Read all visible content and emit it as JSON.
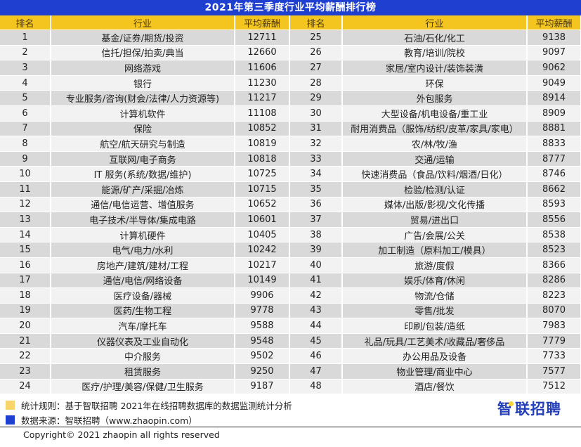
{
  "title": "2021年第三季度行业平均薪酬排行榜",
  "headers": {
    "rank": "排名",
    "industry": "行业",
    "salary": "平均薪酬"
  },
  "colors": {
    "title_bg": "#1f3fd1",
    "header_bg": "#f5c51f",
    "row_odd": "#d9d9d9",
    "row_even": "#f2f2f2",
    "legend_yellow": "#f9d46a",
    "legend_blue": "#1f3fd1"
  },
  "rows": [
    {
      "left": {
        "rank": "1",
        "industry": "基金/证券/期货/投资",
        "salary": "12711"
      },
      "right": {
        "rank": "25",
        "industry": "石油/石化/化工",
        "salary": "9138"
      }
    },
    {
      "left": {
        "rank": "2",
        "industry": "信托/担保/拍卖/典当",
        "salary": "12660"
      },
      "right": {
        "rank": "26",
        "industry": "教育/培训/院校",
        "salary": "9097"
      }
    },
    {
      "left": {
        "rank": "3",
        "industry": "网络游戏",
        "salary": "11606"
      },
      "right": {
        "rank": "27",
        "industry": "家居/室内设计/装饰装潢",
        "salary": "9062"
      }
    },
    {
      "left": {
        "rank": "4",
        "industry": "银行",
        "salary": "11230"
      },
      "right": {
        "rank": "28",
        "industry": "环保",
        "salary": "9049"
      }
    },
    {
      "left": {
        "rank": "5",
        "industry": "专业服务/咨询(财会/法律/人力资源等)",
        "salary": "11217"
      },
      "right": {
        "rank": "29",
        "industry": "外包服务",
        "salary": "8914"
      }
    },
    {
      "left": {
        "rank": "6",
        "industry": "计算机软件",
        "salary": "11108"
      },
      "right": {
        "rank": "30",
        "industry": "大型设备/机电设备/重工业",
        "salary": "8909"
      }
    },
    {
      "left": {
        "rank": "7",
        "industry": "保险",
        "salary": "10852"
      },
      "right": {
        "rank": "31",
        "industry": "耐用消费品（服饰/纺织/皮革/家具/家电）",
        "salary": "8881"
      }
    },
    {
      "left": {
        "rank": "8",
        "industry": "航空/航天研究与制造",
        "salary": "10819"
      },
      "right": {
        "rank": "32",
        "industry": "农/林/牧/渔",
        "salary": "8833"
      }
    },
    {
      "left": {
        "rank": "9",
        "industry": "互联网/电子商务",
        "salary": "10818"
      },
      "right": {
        "rank": "33",
        "industry": "交通/运输",
        "salary": "8777"
      }
    },
    {
      "left": {
        "rank": "10",
        "industry": "IT  服务(系统/数据/维护)",
        "salary": "10725"
      },
      "right": {
        "rank": "34",
        "industry": "快速消费品（食品/饮料/烟酒/日化）",
        "salary": "8746"
      }
    },
    {
      "left": {
        "rank": "11",
        "industry": "能源/矿产/采掘/冶炼",
        "salary": "10715"
      },
      "right": {
        "rank": "35",
        "industry": "检验/检测/认证",
        "salary": "8662"
      }
    },
    {
      "left": {
        "rank": "12",
        "industry": "通信/电信运营、增值服务",
        "salary": "10652"
      },
      "right": {
        "rank": "36",
        "industry": "媒体/出版/影视/文化传播",
        "salary": "8593"
      }
    },
    {
      "left": {
        "rank": "13",
        "industry": "电子技术/半导体/集成电路",
        "salary": "10601"
      },
      "right": {
        "rank": "37",
        "industry": "贸易/进出口",
        "salary": "8556"
      }
    },
    {
      "left": {
        "rank": "14",
        "industry": "计算机硬件",
        "salary": "10405"
      },
      "right": {
        "rank": "38",
        "industry": "广告/会展/公关",
        "salary": "8538"
      }
    },
    {
      "left": {
        "rank": "15",
        "industry": "电气/电力/水利",
        "salary": "10242"
      },
      "right": {
        "rank": "39",
        "industry": "加工制造（原料加工/模具）",
        "salary": "8523"
      }
    },
    {
      "left": {
        "rank": "16",
        "industry": "房地产/建筑/建材/工程",
        "salary": "10217"
      },
      "right": {
        "rank": "40",
        "industry": "旅游/度假",
        "salary": "8366"
      }
    },
    {
      "left": {
        "rank": "17",
        "industry": "通信/电信/网络设备",
        "salary": "10149"
      },
      "right": {
        "rank": "41",
        "industry": "娱乐/体育/休闲",
        "salary": "8286"
      }
    },
    {
      "left": {
        "rank": "18",
        "industry": "医疗设备/器械",
        "salary": "9906"
      },
      "right": {
        "rank": "42",
        "industry": "物流/仓储",
        "salary": "8223"
      }
    },
    {
      "left": {
        "rank": "19",
        "industry": "医药/生物工程",
        "salary": "9778"
      },
      "right": {
        "rank": "43",
        "industry": "零售/批发",
        "salary": "8070"
      }
    },
    {
      "left": {
        "rank": "20",
        "industry": "汽车/摩托车",
        "salary": "9588"
      },
      "right": {
        "rank": "44",
        "industry": "印刷/包装/造纸",
        "salary": "7983"
      }
    },
    {
      "left": {
        "rank": "21",
        "industry": "仪器仪表及工业自动化",
        "salary": "9548"
      },
      "right": {
        "rank": "45",
        "industry": "礼品/玩具/工艺美术/收藏品/奢侈品",
        "salary": "7779"
      }
    },
    {
      "left": {
        "rank": "22",
        "industry": "中介服务",
        "salary": "9502"
      },
      "right": {
        "rank": "46",
        "industry": "办公用品及设备",
        "salary": "7733"
      }
    },
    {
      "left": {
        "rank": "23",
        "industry": "租赁服务",
        "salary": "9250"
      },
      "right": {
        "rank": "47",
        "industry": "物业管理/商业中心",
        "salary": "7577"
      }
    },
    {
      "left": {
        "rank": "24",
        "industry": "医疗/护理/美容/保健/卫生服务",
        "salary": "9187"
      },
      "right": {
        "rank": "48",
        "industry": "酒店/餐饮",
        "salary": "7512"
      }
    }
  ],
  "notes": {
    "rule": "统计规则：基于智联招聘  2021年在线招聘数据库的数据监测统计分析",
    "source": "数据来源：智联招聘（www.zhaopin.com）"
  },
  "copyright": "Copyright© 2021 zhaopin all rights reserved",
  "logo": {
    "first_char": "智",
    "rest": "联招聘"
  }
}
